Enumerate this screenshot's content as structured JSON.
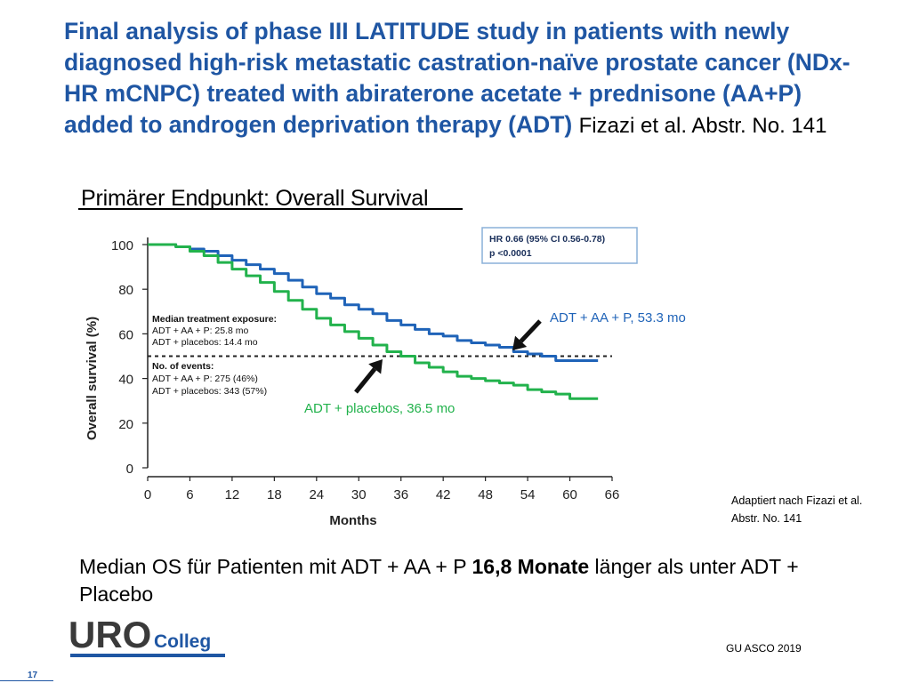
{
  "slide": {
    "title_bold": "Final analysis of phase III LATITUDE study in patients with newly diagnosed high-risk metastatic castration-naïve prostate cancer (NDx-HR mCNPC) treated with abiraterone acetate + prednisone (AA+P) added to androgen deprivation therapy (ADT)",
    "title_ref": "Fizazi et al. Abstr. No. 141",
    "subtitle": "Primärer Endpunkt: Overall Survival",
    "adapted_note": "Adaptiert nach Fizazi et al. Abstr. No. 141",
    "median_prefix": "Median OS für Patienten mit ADT + AA + P ",
    "median_bold": "16,8 Monate",
    "median_suffix": " länger als unter ADT + Placebo",
    "logo_uro": "URO",
    "logo_colleg": "Colleg",
    "footer_source": "GU ASCO 2019",
    "page_number": "17"
  },
  "colors": {
    "title_blue": "#1f56a3",
    "series_aa_p": "#1f63b8",
    "series_placebo": "#22b24c",
    "logo_gray": "#3a3a3a",
    "logo_blue": "#1f56a3"
  },
  "chart_data": {
    "type": "line",
    "xlabel": "Months",
    "ylabel": "Overall survival (%)",
    "xlim": [
      0,
      66
    ],
    "ylim": [
      0,
      100
    ],
    "x_ticks": [
      "0",
      "6",
      "12",
      "18",
      "24",
      "30",
      "36",
      "42",
      "48",
      "54",
      "60",
      "66"
    ],
    "y_ticks": [
      "0",
      "20",
      "40",
      "60",
      "80",
      "100"
    ],
    "reference_line_y": 50,
    "hr_box": {
      "line1": "HR 0.66 (95% CI 0.56-0.78)",
      "line2": "p <0.0001"
    },
    "exposure_box": {
      "heading": "Median treatment exposure:",
      "line1": "ADT + AA + P: 25.8 mo",
      "line2": "ADT + placebos: 14.4 mo"
    },
    "events_box": {
      "heading": "No. of events:",
      "line1": "ADT + AA + P: 275 (46%)",
      "line2": "ADT + placebos: 343 (57%)"
    },
    "annotations": [
      {
        "text": "ADT + AA + P, 53.3 mo"
      },
      {
        "text": "ADT + placebos, 36.5 mo"
      }
    ],
    "series": [
      {
        "name": "ADT + AA + P",
        "x": [
          0,
          2,
          4,
          6,
          8,
          10,
          12,
          14,
          16,
          18,
          20,
          22,
          24,
          26,
          28,
          30,
          32,
          34,
          36,
          38,
          40,
          42,
          44,
          46,
          48,
          50,
          52,
          54,
          56,
          58,
          60,
          62,
          64
        ],
        "y": [
          100,
          100,
          99,
          98,
          97,
          95,
          93,
          91,
          89,
          87,
          84,
          81,
          78,
          76,
          73,
          71,
          69,
          66,
          64,
          62,
          60,
          59,
          57,
          56,
          55,
          54,
          52,
          51,
          50,
          48,
          48,
          48,
          48
        ]
      },
      {
        "name": "ADT + placebos",
        "x": [
          0,
          2,
          4,
          6,
          8,
          10,
          12,
          14,
          16,
          18,
          20,
          22,
          24,
          26,
          28,
          30,
          32,
          34,
          36,
          38,
          40,
          42,
          44,
          46,
          48,
          50,
          52,
          54,
          56,
          58,
          60,
          62,
          64
        ],
        "y": [
          100,
          100,
          99,
          97,
          95,
          92,
          89,
          86,
          83,
          79,
          75,
          71,
          67,
          64,
          61,
          58,
          55,
          52,
          50,
          47,
          45,
          43,
          41,
          40,
          39,
          38,
          37,
          35,
          34,
          33,
          31,
          31,
          31
        ]
      }
    ]
  }
}
